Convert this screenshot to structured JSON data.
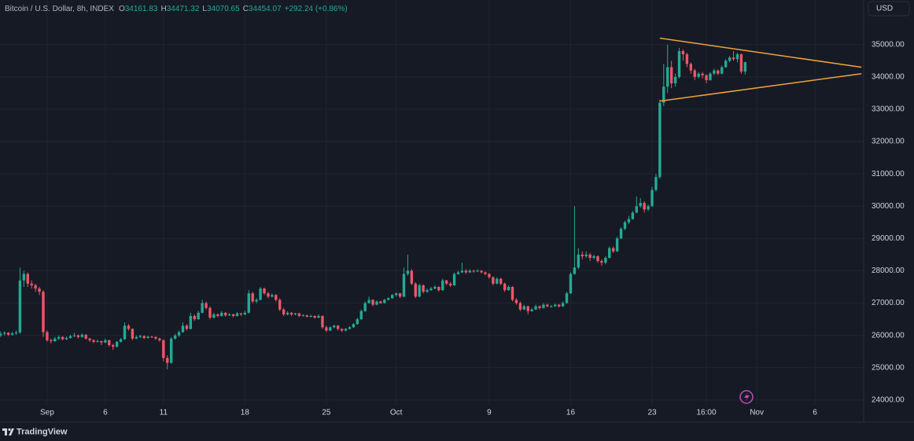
{
  "header": {
    "symbol": "Bitcoin / U.S. Dollar, 8h, INDEX",
    "ohlc": [
      {
        "key": "O",
        "value": "34161.83"
      },
      {
        "key": "H",
        "value": "34471.32"
      },
      {
        "key": "L",
        "value": "34070.65"
      },
      {
        "key": "C",
        "value": "34454.07"
      }
    ],
    "change": "+292.24 (+0.86%)"
  },
  "currency": "USD",
  "brand": "TradingView",
  "chart_data": {
    "type": "candlestick",
    "up_color": "#22ab94",
    "down_color": "#f05665",
    "grid": true,
    "ylim": [
      23850,
      36380
    ],
    "yticks": [
      {
        "value": 24000,
        "label": "24000.00"
      },
      {
        "value": 25000,
        "label": "25000.00"
      },
      {
        "value": 26000,
        "label": "26000.00"
      },
      {
        "value": 27000,
        "label": "27000.00"
      },
      {
        "value": 28000,
        "label": "28000.00"
      },
      {
        "value": 29000,
        "label": "29000.00"
      },
      {
        "value": 30000,
        "label": "30000.00"
      },
      {
        "value": 31000,
        "label": "31000.00"
      },
      {
        "value": 32000,
        "label": "32000.00"
      },
      {
        "value": 33000,
        "label": "33000.00"
      },
      {
        "value": 34000,
        "label": "34000.00"
      },
      {
        "value": 35000,
        "label": "35000.00"
      }
    ],
    "categories": [
      null,
      null,
      null,
      null,
      null,
      null,
      null,
      null,
      null,
      null,
      null,
      null,
      "Sep",
      null,
      null,
      null,
      null,
      null,
      null,
      null,
      null,
      null,
      null,
      null,
      null,
      null,
      null,
      "6",
      null,
      null,
      null,
      null,
      null,
      null,
      null,
      null,
      null,
      null,
      null,
      null,
      null,
      null,
      "11",
      null,
      null,
      null,
      null,
      null,
      null,
      null,
      null,
      null,
      null,
      null,
      null,
      null,
      null,
      null,
      null,
      null,
      null,
      null,
      null,
      "18",
      null,
      null,
      null,
      null,
      null,
      null,
      null,
      null,
      null,
      null,
      null,
      null,
      null,
      null,
      null,
      null,
      null,
      null,
      null,
      null,
      "25",
      null,
      null,
      null,
      null,
      null,
      null,
      null,
      null,
      null,
      null,
      null,
      null,
      null,
      null,
      null,
      null,
      null,
      "Oct",
      null,
      null,
      null,
      null,
      null,
      null,
      null,
      null,
      null,
      null,
      null,
      null,
      null,
      null,
      null,
      null,
      null,
      null,
      null,
      null,
      null,
      null,
      null,
      "9",
      null,
      null,
      null,
      null,
      null,
      null,
      null,
      null,
      null,
      null,
      null,
      null,
      null,
      null,
      null,
      null,
      null,
      null,
      null,
      null,
      "16",
      null,
      null,
      null,
      null,
      null,
      null,
      null,
      null,
      null,
      null,
      null,
      null,
      null,
      null,
      null,
      null,
      null,
      null,
      null,
      null,
      "23",
      null,
      null,
      null,
      null,
      null,
      null,
      null,
      null,
      null,
      null,
      null,
      null,
      null,
      "16:00",
      null,
      null,
      null,
      null,
      null,
      null,
      null,
      null,
      null,
      null,
      null,
      null,
      "Nov",
      null,
      null,
      null,
      null,
      null,
      null,
      null,
      null,
      null,
      null,
      null,
      null,
      null,
      null,
      "6",
      null,
      null,
      null,
      null,
      null,
      null,
      null,
      null,
      null,
      null,
      null,
      null
    ],
    "ohlc": [
      [
        26000,
        26120,
        25950,
        26050
      ],
      [
        26050,
        26130,
        26000,
        26080
      ],
      [
        26080,
        26100,
        25980,
        26020
      ],
      [
        26020,
        26110,
        25990,
        26060
      ],
      [
        26060,
        26150,
        26020,
        26090
      ],
      [
        26090,
        28100,
        26050,
        27700
      ],
      [
        27700,
        28000,
        27500,
        27900
      ],
      [
        27900,
        27950,
        27500,
        27600
      ],
      [
        27600,
        27700,
        27450,
        27550
      ],
      [
        27550,
        27600,
        27350,
        27450
      ],
      [
        27450,
        27500,
        27250,
        27350
      ],
      [
        27350,
        27400,
        25950,
        26100
      ],
      [
        26100,
        26150,
        25800,
        25850
      ],
      [
        25850,
        25900,
        25750,
        25820
      ],
      [
        25820,
        25950,
        25800,
        25900
      ],
      [
        25900,
        26000,
        25850,
        25950
      ],
      [
        25950,
        25980,
        25850,
        25880
      ],
      [
        25880,
        25960,
        25850,
        25920
      ],
      [
        25920,
        26020,
        25900,
        25980
      ],
      [
        25980,
        26080,
        25950,
        26000
      ],
      [
        26000,
        26030,
        25900,
        25950
      ],
      [
        25950,
        26060,
        25930,
        26020
      ],
      [
        26020,
        26040,
        25870,
        25900
      ],
      [
        25900,
        25930,
        25800,
        25850
      ],
      [
        25850,
        25880,
        25760,
        25800
      ],
      [
        25800,
        25870,
        25780,
        25820
      ],
      [
        25820,
        25840,
        25700,
        25780
      ],
      [
        25780,
        25900,
        25760,
        25850
      ],
      [
        25850,
        25870,
        25650,
        25700
      ],
      [
        25700,
        25740,
        25550,
        25650
      ],
      [
        25650,
        25830,
        25620,
        25800
      ],
      [
        25800,
        25920,
        25780,
        25880
      ],
      [
        25880,
        26400,
        25860,
        26300
      ],
      [
        26300,
        26350,
        26150,
        26200
      ],
      [
        26200,
        26220,
        25850,
        25900
      ],
      [
        25900,
        26000,
        25880,
        25950
      ],
      [
        25950,
        26020,
        25920,
        25980
      ],
      [
        25980,
        26000,
        25880,
        25920
      ],
      [
        25920,
        25990,
        25900,
        25960
      ],
      [
        25960,
        25990,
        25920,
        25950
      ],
      [
        25950,
        25970,
        25860,
        25900
      ],
      [
        25900,
        25930,
        25800,
        25850
      ],
      [
        25850,
        25880,
        25200,
        25300
      ],
      [
        25300,
        25380,
        24950,
        25150
      ],
      [
        25150,
        25950,
        25120,
        25900
      ],
      [
        25900,
        26050,
        25870,
        26000
      ],
      [
        26000,
        26150,
        25950,
        26100
      ],
      [
        26100,
        26400,
        26080,
        26300
      ],
      [
        26300,
        26350,
        26150,
        26200
      ],
      [
        26200,
        26700,
        26180,
        26600
      ],
      [
        26600,
        26650,
        26450,
        26500
      ],
      [
        26500,
        26760,
        26480,
        26700
      ],
      [
        26700,
        27100,
        26680,
        27000
      ],
      [
        27000,
        27050,
        26800,
        26850
      ],
      [
        26850,
        26900,
        26500,
        26550
      ],
      [
        26550,
        26700,
        26520,
        26650
      ],
      [
        26650,
        26680,
        26560,
        26600
      ],
      [
        26600,
        26750,
        26580,
        26700
      ],
      [
        26700,
        26720,
        26580,
        26620
      ],
      [
        26620,
        26690,
        26600,
        26650
      ],
      [
        26650,
        26670,
        26560,
        26600
      ],
      [
        26600,
        26720,
        26580,
        26680
      ],
      [
        26680,
        26700,
        26600,
        26650
      ],
      [
        26650,
        26760,
        26620,
        26700
      ],
      [
        26700,
        27400,
        26680,
        27300
      ],
      [
        27300,
        27350,
        27000,
        27050
      ],
      [
        27050,
        27150,
        27000,
        27100
      ],
      [
        27100,
        27500,
        27080,
        27450
      ],
      [
        27450,
        27480,
        27250,
        27300
      ],
      [
        27300,
        27350,
        27150,
        27200
      ],
      [
        27200,
        27300,
        27170,
        27250
      ],
      [
        27250,
        27280,
        27050,
        27100
      ],
      [
        27100,
        27150,
        26750,
        26800
      ],
      [
        26800,
        26850,
        26600,
        26650
      ],
      [
        26650,
        26750,
        26620,
        26700
      ],
      [
        26700,
        26720,
        26600,
        26650
      ],
      [
        26650,
        26700,
        26620,
        26680
      ],
      [
        26680,
        26700,
        26570,
        26600
      ],
      [
        26600,
        26660,
        26580,
        26620
      ],
      [
        26620,
        26640,
        26550,
        26580
      ],
      [
        26580,
        26640,
        26560,
        26600
      ],
      [
        26600,
        26620,
        26520,
        26550
      ],
      [
        26550,
        26650,
        26530,
        26600
      ],
      [
        26600,
        26620,
        26200,
        26250
      ],
      [
        26250,
        26300,
        26100,
        26150
      ],
      [
        26150,
        26280,
        26130,
        26250
      ],
      [
        26250,
        26330,
        26220,
        26300
      ],
      [
        26300,
        26320,
        26150,
        26200
      ],
      [
        26200,
        26220,
        26100,
        26150
      ],
      [
        26150,
        26230,
        26120,
        26200
      ],
      [
        26200,
        26280,
        26180,
        26250
      ],
      [
        26250,
        26380,
        26230,
        26350
      ],
      [
        26350,
        26550,
        26330,
        26500
      ],
      [
        26500,
        26800,
        26480,
        26750
      ],
      [
        26750,
        27050,
        26730,
        27000
      ],
      [
        27000,
        27200,
        26980,
        27100
      ],
      [
        27100,
        27120,
        26900,
        26950
      ],
      [
        26950,
        27080,
        26930,
        27050
      ],
      [
        27050,
        27070,
        26970,
        27000
      ],
      [
        27000,
        27130,
        26980,
        27100
      ],
      [
        27100,
        27180,
        27080,
        27150
      ],
      [
        27150,
        27280,
        27130,
        27250
      ],
      [
        27250,
        27330,
        27200,
        27300
      ],
      [
        27300,
        27320,
        27150,
        27200
      ],
      [
        27200,
        28100,
        27180,
        27900
      ],
      [
        27900,
        28500,
        27850,
        28000
      ],
      [
        28000,
        28050,
        27550,
        27600
      ],
      [
        27600,
        27650,
        27150,
        27200
      ],
      [
        27200,
        27600,
        27180,
        27550
      ],
      [
        27550,
        27580,
        27300,
        27350
      ],
      [
        27350,
        27450,
        27320,
        27400
      ],
      [
        27400,
        27500,
        27380,
        27450
      ],
      [
        27450,
        27550,
        27420,
        27500
      ],
      [
        27500,
        27520,
        27350,
        27400
      ],
      [
        27400,
        27750,
        27380,
        27700
      ],
      [
        27700,
        27720,
        27550,
        27600
      ],
      [
        27600,
        27650,
        27500,
        27550
      ],
      [
        27550,
        27950,
        27530,
        27900
      ],
      [
        27900,
        28000,
        27880,
        27950
      ],
      [
        27950,
        28250,
        27930,
        28000
      ],
      [
        28000,
        28050,
        27900,
        27950
      ],
      [
        27950,
        28050,
        27930,
        28000
      ],
      [
        28000,
        28030,
        27940,
        27980
      ],
      [
        27980,
        28050,
        27960,
        28000
      ],
      [
        28000,
        28020,
        27920,
        27950
      ],
      [
        27950,
        27980,
        27860,
        27900
      ],
      [
        27900,
        27930,
        27750,
        27800
      ],
      [
        27800,
        27830,
        27550,
        27600
      ],
      [
        27600,
        27800,
        27580,
        27750
      ],
      [
        27750,
        27780,
        27550,
        27600
      ],
      [
        27600,
        27630,
        27350,
        27400
      ],
      [
        27400,
        27550,
        27380,
        27500
      ],
      [
        27500,
        27520,
        27050,
        27100
      ],
      [
        27100,
        27150,
        26950,
        27000
      ],
      [
        27000,
        27050,
        26750,
        26800
      ],
      [
        26800,
        26950,
        26780,
        26900
      ],
      [
        26900,
        26920,
        26650,
        26750
      ],
      [
        26750,
        26850,
        26730,
        26800
      ],
      [
        26800,
        26950,
        26780,
        26900
      ],
      [
        26900,
        26930,
        26800,
        26850
      ],
      [
        26850,
        27000,
        26830,
        26950
      ],
      [
        26950,
        26980,
        26870,
        26900
      ],
      [
        26900,
        26940,
        26860,
        26900
      ],
      [
        26900,
        26980,
        26880,
        26950
      ],
      [
        26950,
        26970,
        26860,
        26900
      ],
      [
        26900,
        27050,
        26880,
        27000
      ],
      [
        27000,
        27350,
        26980,
        27300
      ],
      [
        27300,
        27950,
        27280,
        27900
      ],
      [
        27900,
        30000,
        27880,
        28100
      ],
      [
        28100,
        28700,
        28050,
        28500
      ],
      [
        28500,
        28600,
        28350,
        28450
      ],
      [
        28450,
        28600,
        28400,
        28500
      ],
      [
        28500,
        28550,
        28300,
        28400
      ],
      [
        28400,
        28500,
        28350,
        28450
      ],
      [
        28450,
        28480,
        28250,
        28300
      ],
      [
        28300,
        28350,
        28150,
        28250
      ],
      [
        28250,
        28450,
        28200,
        28400
      ],
      [
        28400,
        28750,
        28380,
        28700
      ],
      [
        28700,
        28750,
        28550,
        28600
      ],
      [
        28600,
        29050,
        28580,
        29000
      ],
      [
        29000,
        29350,
        28980,
        29300
      ],
      [
        29300,
        29550,
        29250,
        29500
      ],
      [
        29500,
        29700,
        29450,
        29600
      ],
      [
        29600,
        29850,
        29580,
        29800
      ],
      [
        29800,
        30300,
        29780,
        30000
      ],
      [
        30000,
        30250,
        29950,
        30100
      ],
      [
        30100,
        30150,
        29800,
        29900
      ],
      [
        29900,
        30050,
        29850,
        30000
      ],
      [
        30000,
        30600,
        29980,
        30500
      ],
      [
        30500,
        31000,
        30450,
        30900
      ],
      [
        30900,
        33300,
        30850,
        33200
      ],
      [
        33200,
        34400,
        33100,
        33700
      ],
      [
        33700,
        35000,
        33500,
        34300
      ],
      [
        34300,
        34500,
        33650,
        33800
      ],
      [
        33800,
        34100,
        33700,
        34000
      ],
      [
        34000,
        34900,
        33950,
        34800
      ],
      [
        34800,
        34850,
        34500,
        34700
      ],
      [
        34700,
        34750,
        34300,
        34400
      ],
      [
        34400,
        34450,
        34100,
        34200
      ],
      [
        34200,
        34250,
        33900,
        34000
      ],
      [
        34000,
        34150,
        33950,
        34100
      ],
      [
        34100,
        34150,
        33950,
        34050
      ],
      [
        34050,
        34080,
        33800,
        33900
      ],
      [
        33900,
        34150,
        33880,
        34100
      ],
      [
        34100,
        34250,
        34050,
        34200
      ],
      [
        34200,
        34230,
        34050,
        34100
      ],
      [
        34100,
        34350,
        34080,
        34300
      ],
      [
        34300,
        34550,
        34280,
        34500
      ],
      [
        34500,
        34650,
        34450,
        34600
      ],
      [
        34600,
        34800,
        34500,
        34550
      ],
      [
        34550,
        34750,
        34450,
        34700
      ],
      [
        34700,
        34720,
        34100,
        34161.83
      ],
      [
        34161.83,
        34471.32,
        34070.65,
        34454.07
      ],
      null,
      null,
      null,
      null,
      null,
      null,
      null,
      null,
      null,
      null,
      null,
      null,
      null,
      null,
      null,
      null,
      null,
      null,
      null,
      null,
      null,
      null,
      null,
      null,
      null,
      null,
      null,
      null,
      null,
      null
    ],
    "trendlines": [
      {
        "color": "#f0a23b",
        "start": [
          170,
          35200
        ],
        "end": [
          222,
          34300
        ]
      },
      {
        "color": "#f0a23b",
        "start": [
          170,
          33250
        ],
        "end": [
          222,
          34100
        ]
      }
    ]
  }
}
